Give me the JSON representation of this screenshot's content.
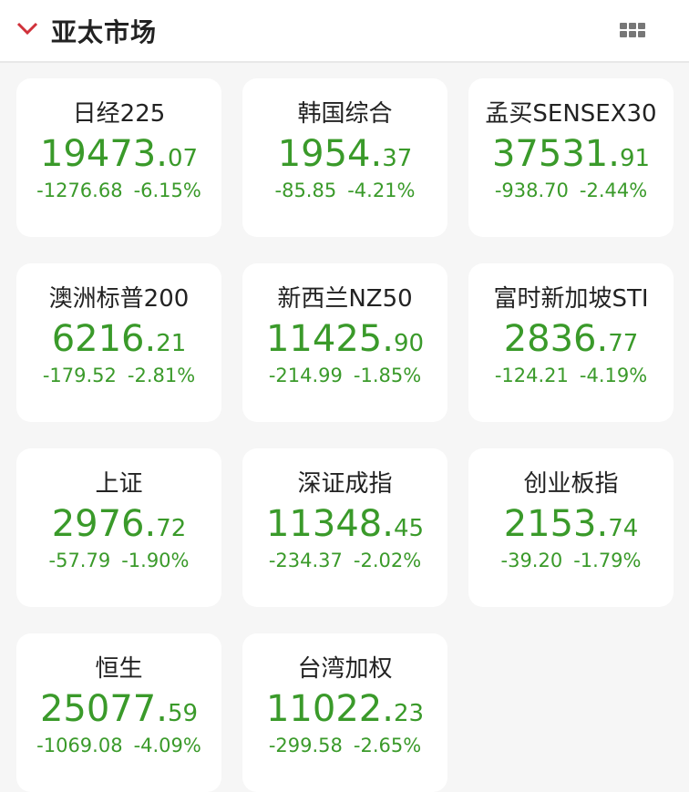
{
  "header": {
    "title": "亚太市场",
    "accent": "#d0313a"
  },
  "colors": {
    "down": "#3a9a2a"
  },
  "indices": [
    {
      "name": "日经225",
      "int": "19473.",
      "dec": "07",
      "change": "-1276.68",
      "pct": "-6.15%"
    },
    {
      "name": "韩国综合",
      "int": "1954.",
      "dec": "37",
      "change": "-85.85",
      "pct": "-4.21%"
    },
    {
      "name": "孟买SENSEX30",
      "int": "37531.",
      "dec": "91",
      "change": "-938.70",
      "pct": "-2.44%"
    },
    {
      "name": "澳洲标普200",
      "int": "6216.",
      "dec": "21",
      "change": "-179.52",
      "pct": "-2.81%"
    },
    {
      "name": "新西兰NZ50",
      "int": "11425.",
      "dec": "90",
      "change": "-214.99",
      "pct": "-1.85%"
    },
    {
      "name": "富时新加坡STI",
      "int": "2836.",
      "dec": "77",
      "change": "-124.21",
      "pct": "-4.19%"
    },
    {
      "name": "上证",
      "int": "2976.",
      "dec": "72",
      "change": "-57.79",
      "pct": "-1.90%"
    },
    {
      "name": "深证成指",
      "int": "11348.",
      "dec": "45",
      "change": "-234.37",
      "pct": "-2.02%"
    },
    {
      "name": "创业板指",
      "int": "2153.",
      "dec": "74",
      "change": "-39.20",
      "pct": "-1.79%"
    },
    {
      "name": "恒生",
      "int": "25077.",
      "dec": "59",
      "change": "-1069.08",
      "pct": "-4.09%"
    },
    {
      "name": "台湾加权",
      "int": "11022.",
      "dec": "23",
      "change": "-299.58",
      "pct": "-2.65%"
    }
  ]
}
